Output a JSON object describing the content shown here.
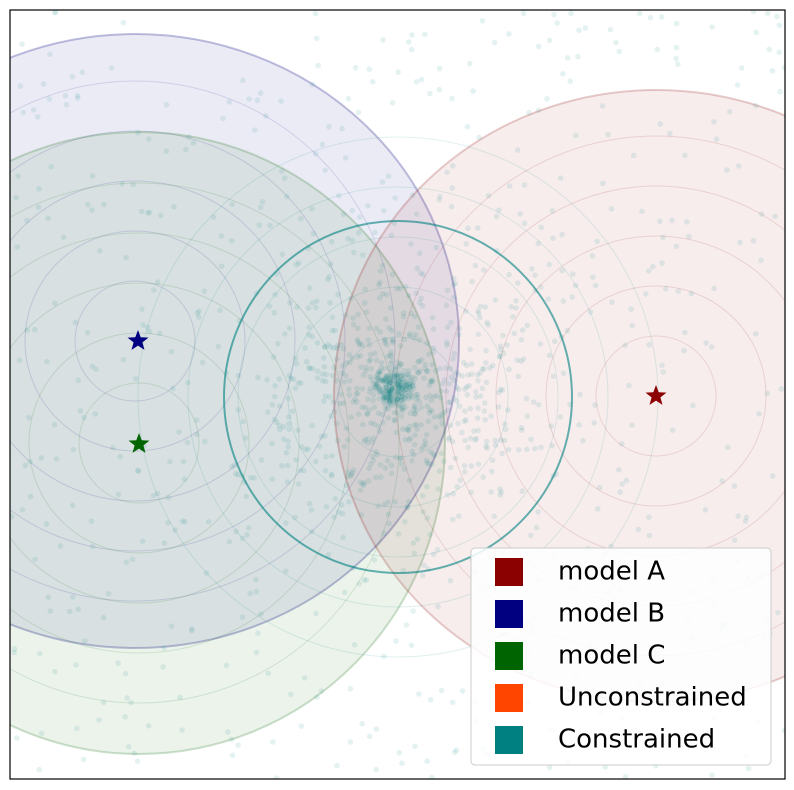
{
  "legend": {
    "items": [
      {
        "label": "model A",
        "color": "#8b0000"
      },
      {
        "label": "model B",
        "color": "#000080"
      },
      {
        "label": "model C",
        "color": "#006400"
      },
      {
        "label": "Unconstrained",
        "color": "#ff4500"
      },
      {
        "label": "Constrained",
        "color": "#008080"
      }
    ]
  }
}
